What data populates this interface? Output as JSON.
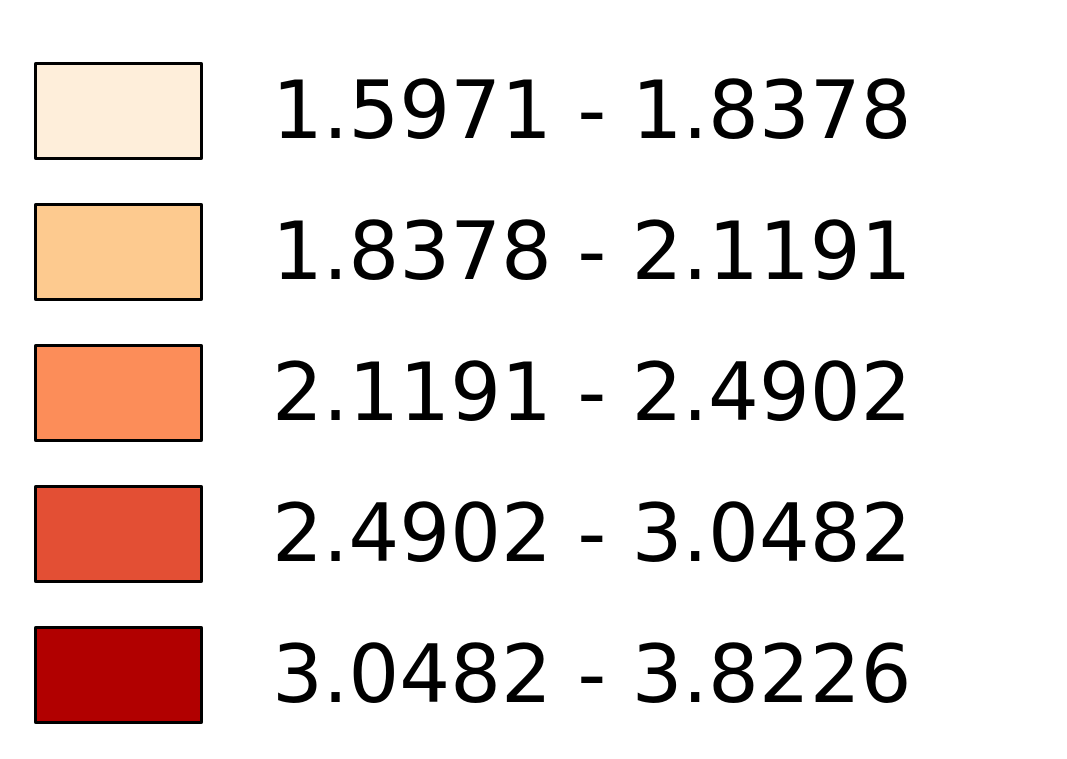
{
  "legend": {
    "items": [
      {
        "label": "1.5971 - 1.8378",
        "color": "#FEEEDA"
      },
      {
        "label": "1.8378 - 2.1191",
        "color": "#FDCA8F"
      },
      {
        "label": "2.1191 - 2.4902",
        "color": "#FC8D59"
      },
      {
        "label": "2.4902 - 3.0482",
        "color": "#E34F34"
      },
      {
        "label": "3.0482 - 3.8226",
        "color": "#B10000"
      }
    ]
  }
}
